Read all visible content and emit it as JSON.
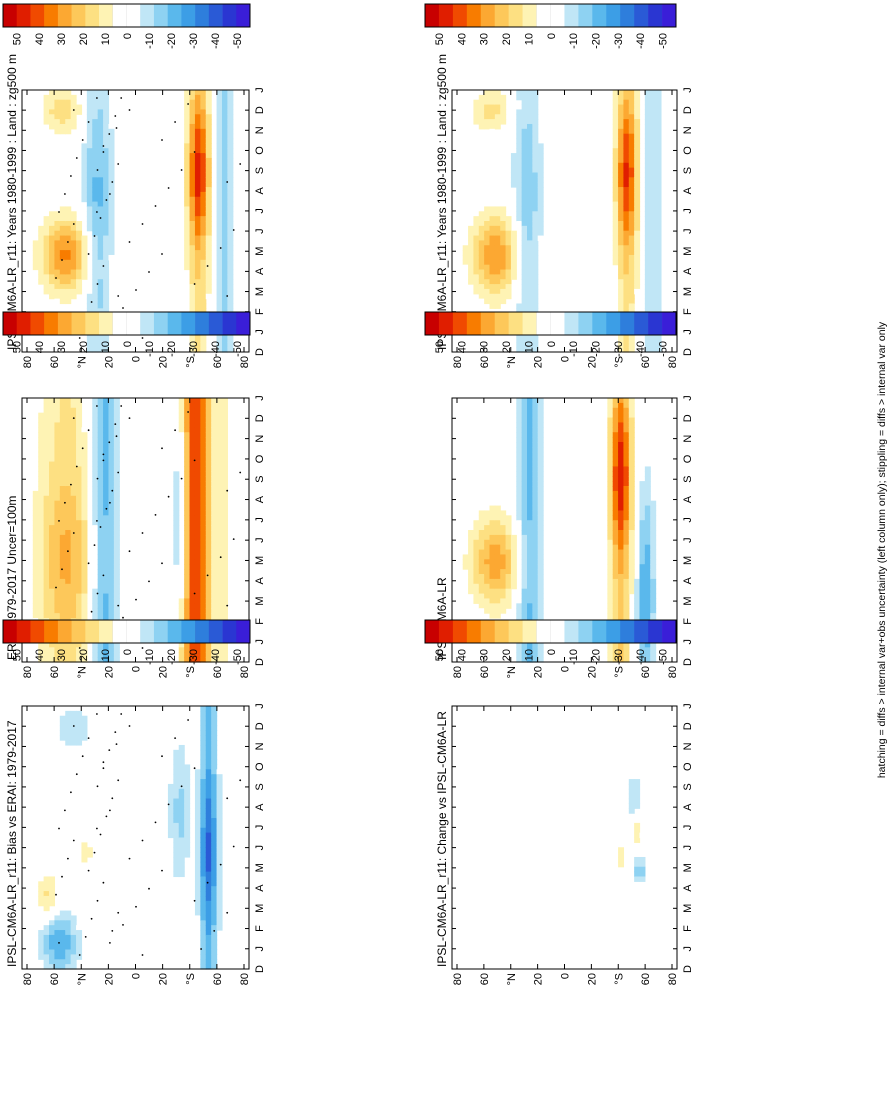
{
  "figure": {
    "footnote": "hatching = diffs > internal var+obs uncertainty (left column only); stippling = diffs > internal var only"
  },
  "colors": {
    "palette": [
      "#c80000",
      "#e01e00",
      "#f04a00",
      "#f87c00",
      "#fca832",
      "#fdc85a",
      "#fde082",
      "#fef3b4",
      "#ffffff",
      "#ffffff",
      "#c0e6f6",
      "#8ed2f2",
      "#5ab8ec",
      "#3c9ee6",
      "#2e7edc",
      "#2a5ad6",
      "#2a36d2",
      "#3a1ed8"
    ],
    "stipple": "#000000"
  },
  "chart_data": [
    {
      "id": "p1",
      "type": "heatmap",
      "title": "IPSL-CM6A-LR_r11: Years 1980-1999 : Land : zg500 m",
      "x_ticks": [
        "D",
        "J",
        "F",
        "M",
        "A",
        "M",
        "J",
        "J",
        "A",
        "S",
        "O",
        "N",
        "D",
        "J"
      ],
      "y_ticks": [
        "80",
        "60",
        "°N",
        "20",
        "0",
        "20",
        "°S",
        "60",
        "80"
      ],
      "y_values": [
        80,
        60,
        40,
        20,
        0,
        -20,
        -40,
        -60,
        -80
      ],
      "colorbar_ticks": [
        "50",
        "40",
        "30",
        "20",
        "10",
        "0",
        "-10",
        "-20",
        "-30",
        "-40",
        "-50"
      ],
      "ylim": [
        -90,
        90
      ],
      "stippled": true
    },
    {
      "id": "p2",
      "type": "heatmap",
      "title": "IPSL-CM6A-LR_r11: Years 1980-1999 : Land : zg500 m",
      "x_ticks": [
        "D",
        "J",
        "F",
        "M",
        "A",
        "M",
        "J",
        "J",
        "A",
        "S",
        "O",
        "N",
        "D",
        "J"
      ],
      "y_ticks": [
        "80",
        "60",
        "°N",
        "20",
        "0",
        "20",
        "°S",
        "60",
        "80"
      ],
      "y_values": [
        80,
        60,
        40,
        20,
        0,
        -20,
        -40,
        -60,
        -80
      ],
      "colorbar_ticks": [
        "50",
        "40",
        "30",
        "20",
        "10",
        "0",
        "-10",
        "-20",
        "-30",
        "-40",
        "-50"
      ],
      "ylim": [
        -90,
        90
      ],
      "stippled": false
    },
    {
      "id": "p3",
      "type": "heatmap",
      "title": "ERAI: 1979-2017 Uncer=100m",
      "x_ticks": [
        "D",
        "J",
        "F",
        "M",
        "A",
        "M",
        "J",
        "J",
        "A",
        "S",
        "O",
        "N",
        "D",
        "J"
      ],
      "y_ticks": [
        "80",
        "60",
        "°N",
        "20",
        "0",
        "20",
        "°S",
        "60",
        "80"
      ],
      "y_values": [
        80,
        60,
        40,
        20,
        0,
        -20,
        -40,
        -60,
        -80
      ],
      "colorbar_ticks": [
        "50",
        "40",
        "30",
        "20",
        "10",
        "0",
        "-10",
        "-20",
        "-30",
        "-40",
        "-50"
      ],
      "ylim": [
        -90,
        90
      ],
      "stippled": true
    },
    {
      "id": "p4",
      "type": "heatmap",
      "title": "IPSL-CM6A-LR",
      "x_ticks": [
        "D",
        "J",
        "F",
        "M",
        "A",
        "M",
        "J",
        "J",
        "A",
        "S",
        "O",
        "N",
        "D",
        "J"
      ],
      "y_ticks": [
        "80",
        "60",
        "°N",
        "20",
        "0",
        "20",
        "°S",
        "60",
        "80"
      ],
      "y_values": [
        80,
        60,
        40,
        20,
        0,
        -20,
        -40,
        -60,
        -80
      ],
      "colorbar_ticks": [
        "50",
        "40",
        "30",
        "20",
        "10",
        "0",
        "-10",
        "-20",
        "-30",
        "-40",
        "-50"
      ],
      "ylim": [
        -90,
        90
      ],
      "stippled": false
    },
    {
      "id": "p5",
      "type": "heatmap",
      "title": "IPSL-CM6A-LR_r11: Bias vs ERAI: 1979-2017",
      "x_ticks": [
        "D",
        "J",
        "F",
        "M",
        "A",
        "M",
        "J",
        "J",
        "A",
        "S",
        "O",
        "N",
        "D",
        "J"
      ],
      "y_ticks": [
        "80",
        "60",
        "°N",
        "20",
        "0",
        "20",
        "°S",
        "60",
        "80"
      ],
      "y_values": [
        80,
        60,
        40,
        20,
        0,
        -20,
        -40,
        -60,
        -80
      ],
      "colorbar_ticks": [
        "50",
        "40",
        "30",
        "20",
        "10",
        "0",
        "-10",
        "-20",
        "-30",
        "-40",
        "-50"
      ],
      "ylim": [
        -90,
        90
      ],
      "stippled": true
    },
    {
      "id": "p6",
      "type": "heatmap",
      "title": "IPSL-CM6A-LR_r11: Change vs IPSL-CM6A-LR",
      "x_ticks": [
        "D",
        "J",
        "F",
        "M",
        "A",
        "M",
        "J",
        "J",
        "A",
        "S",
        "O",
        "N",
        "D",
        "J"
      ],
      "y_ticks": [
        "80",
        "60",
        "°N",
        "20",
        "0",
        "20",
        "°S",
        "60",
        "80"
      ],
      "y_values": [
        80,
        60,
        40,
        20,
        0,
        -20,
        -40,
        -60,
        -80
      ],
      "colorbar_ticks": [
        "50",
        "40",
        "30",
        "20",
        "10",
        "0",
        "-10",
        "-20",
        "-30",
        "-40",
        "-50"
      ],
      "ylim": [
        -90,
        90
      ],
      "stippled": false
    }
  ]
}
